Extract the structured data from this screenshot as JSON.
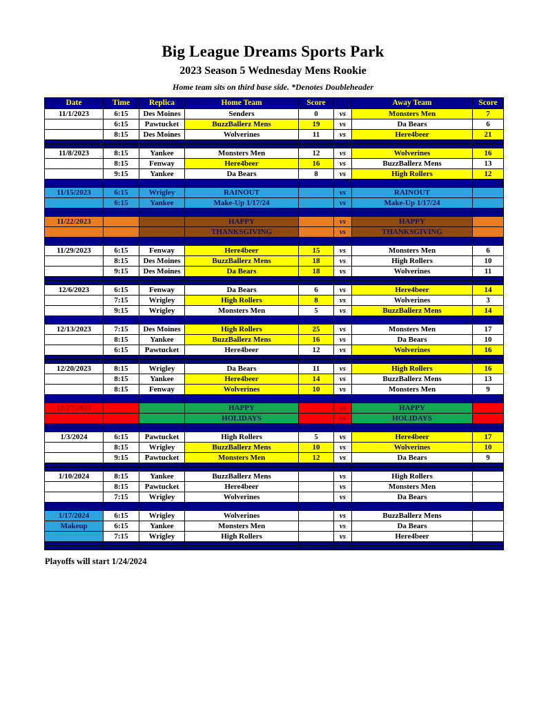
{
  "page": {
    "title": "Big League Dreams Sports Park",
    "subtitle": "2023 Season 5 Wednesday Mens Rookie",
    "note": "Home team sits on third base side.  *Denotes Doubleheader",
    "footer": "Playoffs will start 1/24/2024"
  },
  "colors": {
    "navy": "#00008B",
    "header_text": "#FFFF00",
    "highlight": "#FFFF00",
    "lightblue": "#2EA3DC",
    "orange": "#E97D24",
    "brown": "#8E4A10",
    "red": "#FF0000",
    "green": "#16A752",
    "navy_text": "#14145A",
    "darkred_text": "#8B1010"
  },
  "table": {
    "headers": [
      "Date",
      "Time",
      "Replica",
      "Home Team",
      "Score",
      "",
      "Away Team",
      "Score"
    ],
    "vs_label": "vs",
    "groups": [
      {
        "style": "normal",
        "rows": [
          {
            "date": "11/1/2023",
            "time": "6:15",
            "replica": "Des Moines",
            "home": "Senders",
            "home_score": "0",
            "away": "Monsters Men",
            "away_score": "7",
            "highlight": "away"
          },
          {
            "date": "",
            "time": "6:15",
            "replica": "Pawtucket",
            "home": "BuzzBallerz Mens",
            "home_score": "19",
            "away": "Da Bears",
            "away_score": "6",
            "highlight": "home"
          },
          {
            "date": "",
            "time": "8:15",
            "replica": "Des Moines",
            "home": "Wolverines",
            "home_score": "11",
            "away": "Here4beer",
            "away_score": "21",
            "highlight": "away"
          }
        ]
      },
      {
        "style": "normal",
        "rows": [
          {
            "date": "11/8/2023",
            "time": "8:15",
            "replica": "Yankee",
            "home": "Monsters Men",
            "home_score": "12",
            "away": "Wolverines",
            "away_score": "16",
            "highlight": "away"
          },
          {
            "date": "",
            "time": "8:15",
            "replica": "Fenway",
            "home": "Here4beer",
            "home_score": "16",
            "away": "BuzzBallerz Mens",
            "away_score": "13",
            "highlight": "home"
          },
          {
            "date": "",
            "time": "9:15",
            "replica": "Yankee",
            "home": "Da Bears",
            "home_score": "8",
            "away": "High Rollers",
            "away_score": "12",
            "highlight": "away"
          }
        ]
      },
      {
        "style": "rainout",
        "rows": [
          {
            "date": "11/15/2023",
            "time": "6:15",
            "replica": "Wrigley",
            "home": "RAINOUT",
            "home_score": "",
            "away": "RAINOUT",
            "away_score": "",
            "highlight": "none"
          },
          {
            "date": "",
            "time": "6:15",
            "replica": "Yankee",
            "home": "Make-Up 1/17/24",
            "home_score": "",
            "away": "Make-Up 1/17/24",
            "away_score": "",
            "highlight": "none"
          }
        ]
      },
      {
        "style": "thanksgiving",
        "rows": [
          {
            "date": "11/22/2023",
            "time": "",
            "replica": "",
            "home": "HAPPY",
            "home_score": "",
            "away": "HAPPY",
            "away_score": "",
            "highlight": "none"
          },
          {
            "date": "",
            "time": "",
            "replica": "",
            "home": "THANKSGIVING",
            "home_score": "",
            "away": "THANKSGIVING",
            "away_score": "",
            "highlight": "none"
          }
        ]
      },
      {
        "style": "normal",
        "rows": [
          {
            "date": "11/29/2023",
            "time": "6:15",
            "replica": "Fenway",
            "home": "Here4beer",
            "home_score": "15",
            "away": "Monsters Men",
            "away_score": "6",
            "highlight": "home"
          },
          {
            "date": "",
            "time": "8:15",
            "replica": "Des Moines",
            "home": "BuzzBallerz Mens",
            "home_score": "18",
            "away": "High Rollers",
            "away_score": "10",
            "highlight": "home"
          },
          {
            "date": "",
            "time": "9:15",
            "replica": "Des Moines",
            "home": "Da Bears",
            "home_score": "18",
            "away": "Wolverines",
            "away_score": "11",
            "highlight": "home"
          }
        ]
      },
      {
        "style": "normal",
        "rows": [
          {
            "date": "12/6/2023",
            "time": "6:15",
            "replica": "Fenway",
            "home": "Da Bears",
            "home_score": "6",
            "away": "Here4beer",
            "away_score": "14",
            "highlight": "away"
          },
          {
            "date": "",
            "time": "7:15",
            "replica": "Wrigley",
            "home": "High Rollers",
            "home_score": "8",
            "away": "Wolverines",
            "away_score": "3",
            "highlight": "home"
          },
          {
            "date": "",
            "time": "9:15",
            "replica": "Wrigley",
            "home": "Monsters Men",
            "home_score": "5",
            "away": "BuzzBallerz Mens",
            "away_score": "14",
            "highlight": "away"
          }
        ]
      },
      {
        "style": "normal",
        "rows": [
          {
            "date": "12/13/2023",
            "time": "7:15",
            "replica": "Des Moines",
            "home": "High Rollers",
            "home_score": "25",
            "away": "Monsters Men",
            "away_score": "17",
            "highlight": "home"
          },
          {
            "date": "",
            "time": "8:15",
            "replica": "Yankee",
            "home": "BuzzBallerz Mens",
            "home_score": "16",
            "away": "Da Bears",
            "away_score": "10",
            "highlight": "home"
          },
          {
            "date": "",
            "time": "6:15",
            "replica": "Pawtucket",
            "home": "Here4beer",
            "home_score": "12",
            "away": "Wolverines",
            "away_score": "16",
            "highlight": "away"
          }
        ]
      },
      {
        "style": "normal",
        "rows": [
          {
            "date": "12/20/2023",
            "time": "8:15",
            "replica": "Wrigley",
            "home": "Da Bears",
            "home_score": "11",
            "away": "High Rollers",
            "away_score": "16",
            "highlight": "away"
          },
          {
            "date": "",
            "time": "8:15",
            "replica": "Yankee",
            "home": "Here4beer",
            "home_score": "14",
            "away": "BuzzBallerz Mens",
            "away_score": "13",
            "highlight": "home"
          },
          {
            "date": "",
            "time": "8:15",
            "replica": "Fenway",
            "home": "Wolverines",
            "home_score": "10",
            "away": "Monsters Men",
            "away_score": "9",
            "highlight": "home"
          }
        ]
      },
      {
        "style": "holidays",
        "rows": [
          {
            "date": "12/27/2023",
            "time": "",
            "replica": "",
            "home": "HAPPY",
            "home_score": "",
            "away": "HAPPY",
            "away_score": "",
            "highlight": "none"
          },
          {
            "date": "",
            "time": "",
            "replica": "",
            "home": "HOLIDAYS",
            "home_score": "",
            "away": "HOLIDAYS",
            "away_score": "",
            "highlight": "none"
          }
        ]
      },
      {
        "style": "normal",
        "rows": [
          {
            "date": "1/3/2024",
            "time": "6:15",
            "replica": "Pawtucket",
            "home": "High Rollers",
            "home_score": "5",
            "away": "Here4beer",
            "away_score": "17",
            "highlight": "away"
          },
          {
            "date": "",
            "time": "8:15",
            "replica": "Wrigley",
            "home": "BuzzBallerz Mens",
            "home_score": "10",
            "away": "Wolverines",
            "away_score": "10",
            "highlight": "both"
          },
          {
            "date": "",
            "time": "9:15",
            "replica": "Pawtucket",
            "home": "Monsters Men",
            "home_score": "12",
            "away": "Da Bears",
            "away_score": "9",
            "highlight": "home"
          }
        ]
      },
      {
        "style": "normal",
        "rows": [
          {
            "date": "1/10/2024",
            "time": "8:15",
            "replica": "Yankee",
            "home": "BuzzBallerz Mens",
            "home_score": "",
            "away": "High Rollers",
            "away_score": "",
            "highlight": "none"
          },
          {
            "date": "",
            "time": "8:15",
            "replica": "Pawtucket",
            "home": "Here4beer",
            "home_score": "",
            "away": "Monsters Men",
            "away_score": "",
            "highlight": "none"
          },
          {
            "date": "",
            "time": "7:15",
            "replica": "Wrigley",
            "home": "Wolverines",
            "home_score": "",
            "away": "Da Bears",
            "away_score": "",
            "highlight": "none"
          }
        ]
      },
      {
        "style": "makeup",
        "rows": [
          {
            "date": "1/17/2024",
            "time": "6:15",
            "replica": "Wrigley",
            "home": "Wolverines",
            "home_score": "",
            "away": "BuzzBallerz Mens",
            "away_score": "",
            "highlight": "none"
          },
          {
            "date": "Makeup",
            "time": "6:15",
            "replica": "Yankee",
            "home": "Monsters Men",
            "home_score": "",
            "away": "Da Bears",
            "away_score": "",
            "highlight": "none"
          },
          {
            "date": "",
            "time": "7:15",
            "replica": "Wrigley",
            "home": "High Rollers",
            "home_score": "",
            "away": "Here4beer",
            "away_score": "",
            "highlight": "none"
          }
        ]
      }
    ]
  }
}
